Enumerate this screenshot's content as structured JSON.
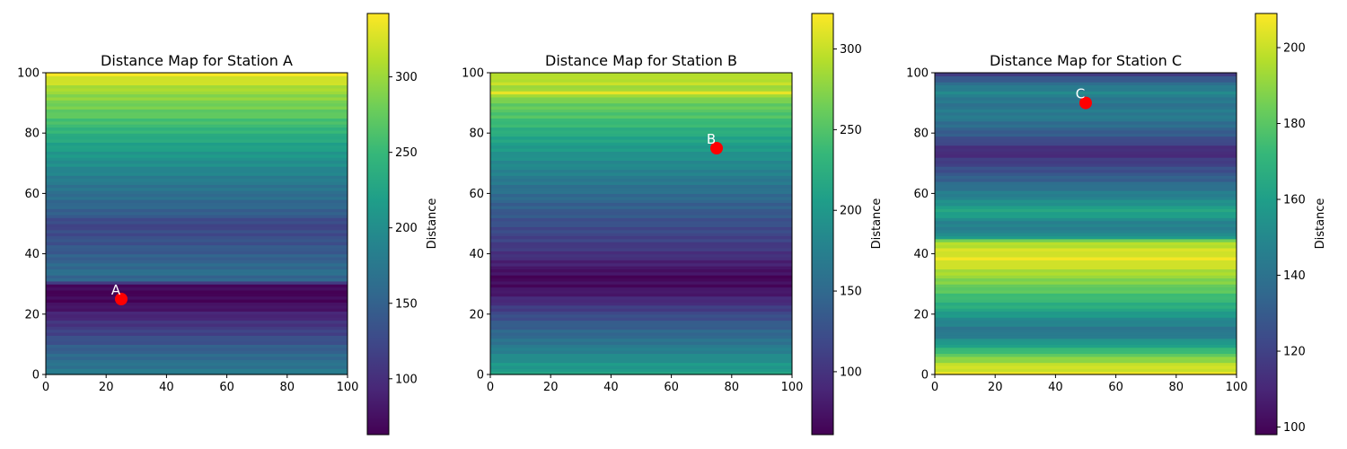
{
  "colormap_stops": [
    "#440154",
    "#482878",
    "#3e4989",
    "#31688e",
    "#26828e",
    "#1f9e89",
    "#35b779",
    "#6ece58",
    "#b5de2b",
    "#fde725"
  ],
  "marker_color": "#ff0000",
  "chart_data": [
    {
      "type": "heatmap",
      "title": "Distance Map for Station A",
      "station": {
        "label": "A",
        "x": 25,
        "y": 25
      },
      "xlim": [
        0,
        100
      ],
      "ylim": [
        0,
        100
      ],
      "xticks": [
        "0",
        "20",
        "40",
        "60",
        "80",
        "100"
      ],
      "yticks": [
        "0",
        "20",
        "40",
        "60",
        "80",
        "100"
      ],
      "colorbar": {
        "label": "Distance",
        "range": [
          63,
          342
        ],
        "ticks": [
          "100",
          "150",
          "200",
          "250",
          "300"
        ]
      },
      "row_profile_y": [
        0,
        3,
        6,
        10,
        15,
        20,
        24,
        28,
        30,
        31,
        34,
        38,
        42,
        46,
        50,
        54,
        58,
        62,
        66,
        70,
        74,
        78,
        82,
        86,
        90,
        94,
        97,
        100
      ],
      "row_profile_value": [
        180,
        170,
        160,
        140,
        115,
        90,
        70,
        63,
        75,
        150,
        165,
        150,
        140,
        130,
        120,
        150,
        160,
        170,
        185,
        200,
        215,
        230,
        250,
        270,
        285,
        300,
        320,
        335
      ],
      "grid": false
    },
    {
      "type": "heatmap",
      "title": "Distance Map for Station B",
      "station": {
        "label": "B",
        "x": 75,
        "y": 75
      },
      "xlim": [
        0,
        100
      ],
      "ylim": [
        0,
        100
      ],
      "xticks": [
        "0",
        "20",
        "40",
        "60",
        "80",
        "100"
      ],
      "yticks": [
        "0",
        "20",
        "40",
        "60",
        "80",
        "100"
      ],
      "colorbar": {
        "label": "Distance",
        "range": [
          61,
          322
        ],
        "ticks": [
          "100",
          "150",
          "200",
          "250",
          "300"
        ]
      },
      "row_profile_y": [
        0,
        4,
        8,
        12,
        16,
        20,
        24,
        28,
        32,
        36,
        40,
        44,
        48,
        52,
        56,
        60,
        64,
        68,
        72,
        76,
        80,
        84,
        88,
        92,
        93,
        95,
        97,
        100
      ],
      "row_profile_value": [
        210,
        195,
        175,
        155,
        140,
        120,
        95,
        75,
        65,
        80,
        100,
        110,
        120,
        130,
        140,
        155,
        165,
        180,
        190,
        205,
        220,
        240,
        255,
        270,
        315,
        280,
        300,
        285
      ],
      "grid": false
    },
    {
      "type": "heatmap",
      "title": "Distance Map for Station C",
      "station": {
        "label": "C",
        "x": 50,
        "y": 90
      },
      "xlim": [
        0,
        100
      ],
      "ylim": [
        0,
        100
      ],
      "xticks": [
        "0",
        "20",
        "40",
        "60",
        "80",
        "100"
      ],
      "yticks": [
        "0",
        "20",
        "40",
        "60",
        "80",
        "100"
      ],
      "colorbar": {
        "label": "Distance",
        "range": [
          98,
          209
        ],
        "ticks": [
          "100",
          "120",
          "140",
          "160",
          "180",
          "200"
        ]
      },
      "row_profile_y": [
        0,
        3,
        6,
        10,
        14,
        18,
        22,
        26,
        30,
        34,
        38,
        42,
        44,
        46,
        50,
        54,
        58,
        62,
        66,
        70,
        74,
        78,
        82,
        86,
        90,
        94,
        98,
        100
      ],
      "row_profile_value": [
        205,
        200,
        185,
        160,
        140,
        150,
        165,
        175,
        185,
        195,
        205,
        200,
        195,
        150,
        145,
        165,
        150,
        140,
        130,
        120,
        110,
        125,
        135,
        145,
        140,
        150,
        130,
        115
      ],
      "grid": false
    }
  ]
}
